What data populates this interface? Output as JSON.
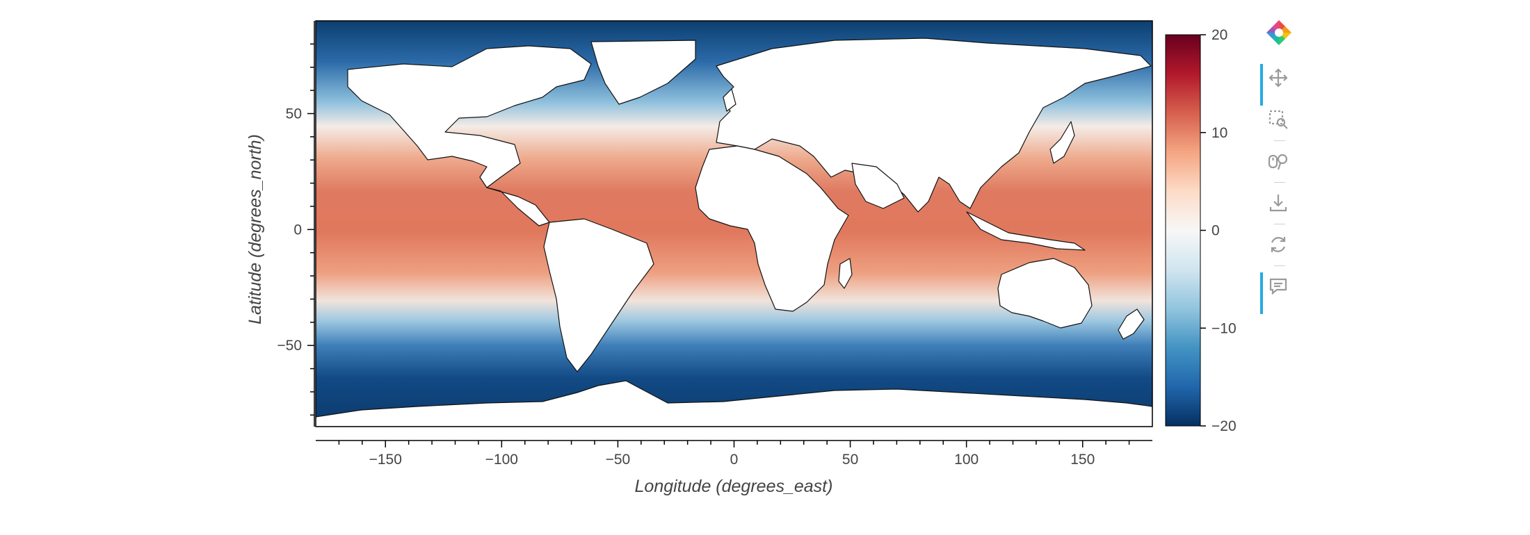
{
  "map": {
    "xlabel": "Longitude (degrees_east)",
    "ylabel": "Latitude (degrees_north)",
    "x_ticks": [
      {
        "value": -150,
        "label": "−150"
      },
      {
        "value": -100,
        "label": "−100"
      },
      {
        "value": -50,
        "label": "−50"
      },
      {
        "value": 0,
        "label": "0"
      },
      {
        "value": 50,
        "label": "50"
      },
      {
        "value": 100,
        "label": "100"
      },
      {
        "value": 150,
        "label": "150"
      }
    ],
    "y_ticks": [
      {
        "value": 50,
        "label": "50"
      },
      {
        "value": 0,
        "label": "0"
      },
      {
        "value": -50,
        "label": "−50"
      }
    ],
    "xlim": [
      -180,
      180
    ],
    "ylim": [
      -85,
      90
    ],
    "projection": "PlateCarree",
    "colormap": "RdBu_r",
    "land_color": "#ffffff",
    "coastline_color": "#000000"
  },
  "colorbar": {
    "range": [
      -20,
      20
    ],
    "ticks": [
      {
        "value": 20,
        "label": "20"
      },
      {
        "value": 10,
        "label": "10"
      },
      {
        "value": 0,
        "label": "0"
      },
      {
        "value": -10,
        "label": "−10"
      },
      {
        "value": -20,
        "label": "−20"
      }
    ],
    "colors": [
      "#053061",
      "#2166ac",
      "#4393c3",
      "#92c5de",
      "#d1e5f0",
      "#f7f7f7",
      "#fddbc7",
      "#f4a582",
      "#d6604d",
      "#b2182b",
      "#67001f"
    ]
  },
  "toolbar": {
    "logo_icon": "bokeh-logo-icon",
    "tools": [
      {
        "name": "pan-tool",
        "icon": "move-icon",
        "active": true
      },
      {
        "name": "box-zoom-tool",
        "icon": "box-zoom-icon",
        "active": false
      },
      {
        "name": "wheel-zoom-tool",
        "icon": "wheel-zoom-icon",
        "active": false
      },
      {
        "name": "save-tool",
        "icon": "download-icon",
        "active": false
      },
      {
        "name": "reset-tool",
        "icon": "reset-icon",
        "active": false
      },
      {
        "name": "hover-tool",
        "icon": "hover-icon",
        "active": true
      }
    ]
  }
}
